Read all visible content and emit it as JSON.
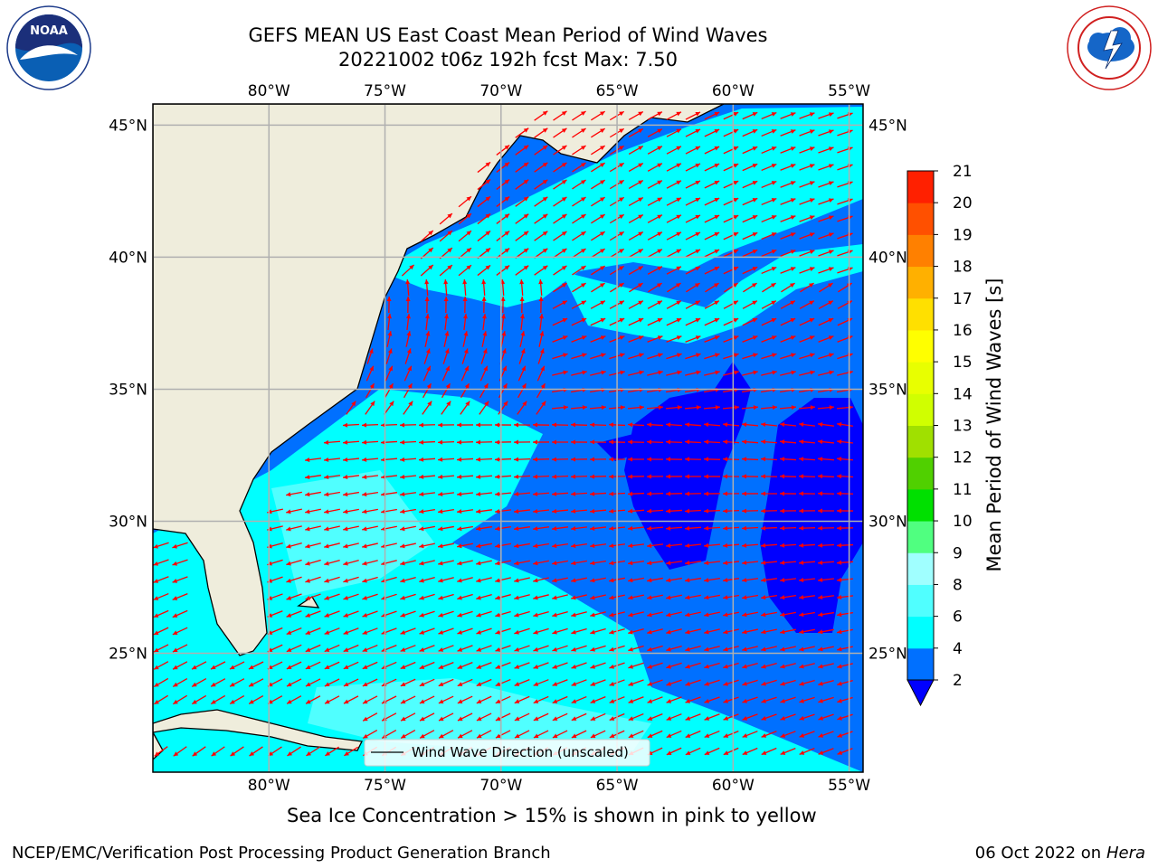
{
  "title": {
    "line1": "GEFS MEAN US East Coast Mean Period of Wind Waves",
    "line2": "20221002 t06z 192h fcst   Max: 7.50"
  },
  "logos": {
    "left": {
      "icon": "noaa-logo",
      "ring_text": "NATIONAL OCEANIC AND ATMOSPHERIC ADMINISTRATION · U.S. DEPARTMENT OF COMMERCE",
      "label": "NOAA"
    },
    "right": {
      "icon": "nws-logo",
      "ring_text": "NATIONAL WEATHER SERVICE"
    }
  },
  "map": {
    "lon_labels": [
      "80°W",
      "75°W",
      "70°W",
      "65°W",
      "60°W",
      "55°W"
    ],
    "lat_labels": [
      "45°N",
      "40°N",
      "35°N",
      "30°N",
      "25°N"
    ],
    "lon_range": [
      -85,
      -54.4
    ],
    "lat_range": [
      20.5,
      45.8
    ],
    "gridlines": true,
    "land_color": "#efeddc",
    "arrow_color": "#ff0000",
    "legend": {
      "label": "Wind Wave Direction (unscaled)",
      "placement": "bottom-center"
    }
  },
  "colorbar": {
    "label": "Mean Period of Wind Waves [s]",
    "ticks": [
      "2",
      "4",
      "6",
      "8",
      "9",
      "10",
      "11",
      "12",
      "13",
      "14",
      "15",
      "16",
      "17",
      "18",
      "19",
      "20",
      "21"
    ],
    "colors": [
      "#0070ff",
      "#00ffff",
      "#50ffff",
      "#a0ffff",
      "#50ff80",
      "#00e000",
      "#50d000",
      "#a0e000",
      "#d0ff00",
      "#e8ff00",
      "#ffff00",
      "#ffe000",
      "#ffb000",
      "#ff8000",
      "#ff5000",
      "#ff2000"
    ],
    "under_color": "#0000ff"
  },
  "notes": {
    "sea_ice": "Sea Ice Concentration > 15% is shown in pink to yellow"
  },
  "footer": {
    "left": "NCEP/EMC/Verification Post Processing Product Generation Branch",
    "right_prefix": "06 Oct 2022 on ",
    "right_host": "Hera"
  }
}
